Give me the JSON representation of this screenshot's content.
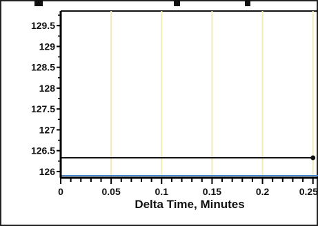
{
  "chart_data": {
    "type": "line",
    "title": "",
    "xlabel": "Delta Time, Minutes",
    "ylabel": "",
    "x_ticks": [
      "0",
      "0.05",
      "0.1",
      "0.15",
      "0.2",
      "0.25"
    ],
    "y_ticks": [
      "126",
      "126.5",
      "127",
      "127.5",
      "128",
      "128.5",
      "129",
      "129.5"
    ],
    "xlim": [
      0,
      0.255
    ],
    "ylim": [
      125.85,
      129.85
    ],
    "grid": "vertical",
    "series": [
      {
        "values": [
          [
            0,
            126.33
          ],
          [
            0.25,
            126.33
          ]
        ],
        "color": "#111111",
        "marker_at_end": true
      },
      {
        "values": [
          [
            0,
            125.9
          ],
          [
            0.255,
            125.9
          ]
        ],
        "color": "#4a86c5",
        "marker_at_end": false
      }
    ],
    "colors": {
      "grid": "#f1ecb8",
      "axis": "#000000",
      "frame": "#222222"
    }
  }
}
